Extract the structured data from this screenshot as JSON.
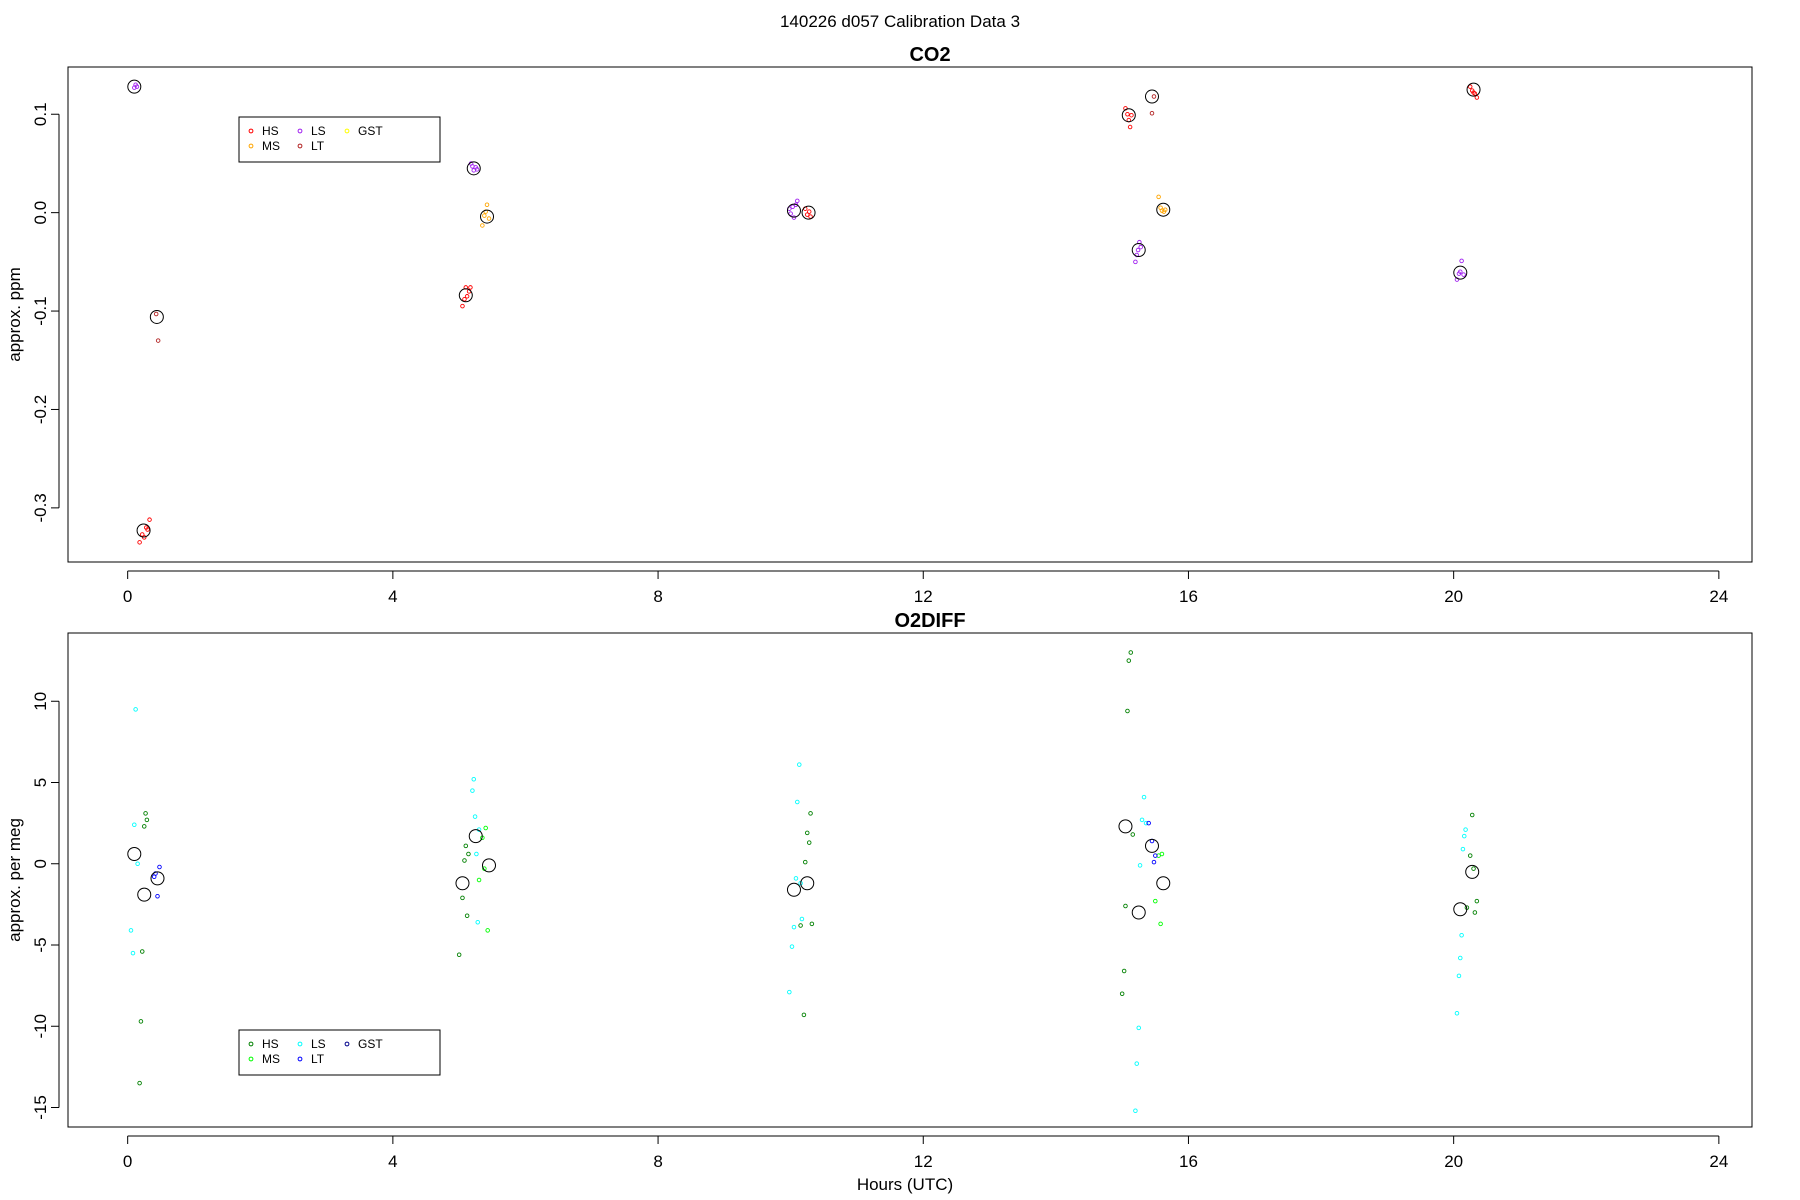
{
  "figure": {
    "title": "140226   d057   Calibration Data 3",
    "xlabel": "Hours (UTC)"
  },
  "chart_data": [
    {
      "type": "scatter",
      "title": "CO2",
      "xlabel": "",
      "ylabel": "approx. ppm",
      "xlim": [
        -0.9,
        24.5
      ],
      "ylim": [
        -0.355,
        0.148
      ],
      "xticks": [
        0,
        4,
        8,
        12,
        16,
        20,
        24
      ],
      "yticks": [
        -0.3,
        -0.2,
        -0.1,
        0.0,
        0.1
      ],
      "ytick_labels": [
        "-0.3",
        "-0.2",
        "-0.1",
        "0.0",
        "0.1"
      ],
      "legend": {
        "placement": "top-left",
        "entries": [
          {
            "name": "HS",
            "color": "#ff0000"
          },
          {
            "name": "MS",
            "color": "#ffa500"
          },
          {
            "name": "LS",
            "color": "#a020f0"
          },
          {
            "name": "LT",
            "color": "#b22222"
          },
          {
            "name": "GST",
            "color": "#ffff00"
          }
        ]
      },
      "series": [
        {
          "name": "HS",
          "color": "#ff0000",
          "points": [
            [
              0.18,
              -0.335
            ],
            [
              0.22,
              -0.327
            ],
            [
              0.25,
              -0.33
            ],
            [
              0.28,
              -0.32
            ],
            [
              0.3,
              -0.322
            ],
            [
              0.33,
              -0.312
            ],
            [
              5.05,
              -0.095
            ],
            [
              5.08,
              -0.088
            ],
            [
              5.1,
              -0.076
            ],
            [
              5.12,
              -0.085
            ],
            [
              5.15,
              -0.08
            ],
            [
              5.17,
              -0.076
            ],
            [
              10.22,
              0.004
            ],
            [
              10.25,
              -0.002
            ],
            [
              10.28,
              0.001
            ],
            [
              10.3,
              -0.004
            ],
            [
              15.05,
              0.106
            ],
            [
              15.08,
              0.1
            ],
            [
              15.1,
              0.094
            ],
            [
              15.12,
              0.087
            ],
            [
              15.14,
              0.099
            ],
            [
              20.25,
              0.128
            ],
            [
              20.28,
              0.124
            ],
            [
              20.3,
              0.122
            ],
            [
              20.32,
              0.121
            ],
            [
              20.35,
              0.117
            ]
          ]
        },
        {
          "name": "MS",
          "color": "#ffa500",
          "points": [
            [
              5.35,
              -0.013
            ],
            [
              5.38,
              -0.003
            ],
            [
              5.4,
              0.001
            ],
            [
              5.42,
              0.008
            ],
            [
              5.45,
              -0.006
            ],
            [
              15.55,
              0.016
            ],
            [
              15.58,
              0.005
            ],
            [
              15.6,
              0.002
            ],
            [
              15.63,
              0.001
            ],
            [
              15.65,
              0.003
            ]
          ]
        },
        {
          "name": "LS",
          "color": "#a020f0",
          "points": [
            [
              0.1,
              0.127
            ],
            [
              0.12,
              0.13
            ],
            [
              0.14,
              0.128
            ],
            [
              5.18,
              0.05
            ],
            [
              5.2,
              0.047
            ],
            [
              5.22,
              0.043
            ],
            [
              5.25,
              0.046
            ],
            [
              5.27,
              0.044
            ],
            [
              9.98,
              0.004
            ],
            [
              10.0,
              -0.001
            ],
            [
              10.03,
              0.006
            ],
            [
              10.05,
              -0.005
            ],
            [
              10.08,
              0.008
            ],
            [
              10.1,
              0.012
            ],
            [
              15.2,
              -0.05
            ],
            [
              15.22,
              -0.043
            ],
            [
              15.24,
              -0.038
            ],
            [
              15.26,
              -0.03
            ],
            [
              15.28,
              -0.035
            ],
            [
              20.05,
              -0.068
            ],
            [
              20.08,
              -0.062
            ],
            [
              20.1,
              -0.06
            ],
            [
              20.12,
              -0.049
            ],
            [
              20.15,
              -0.063
            ]
          ]
        },
        {
          "name": "LT",
          "color": "#b22222",
          "points": [
            [
              0.43,
              -0.103
            ],
            [
              0.46,
              -0.13
            ],
            [
              15.45,
              0.101
            ],
            [
              15.48,
              0.118
            ]
          ]
        },
        {
          "name": "GST",
          "color": "#ffff00",
          "points": []
        },
        {
          "name": "",
          "color": "#000000",
          "marker": "large",
          "points": [
            [
              0.1,
              0.128
            ],
            [
              0.24,
              -0.323
            ],
            [
              0.44,
              -0.106
            ],
            [
              5.1,
              -0.084
            ],
            [
              5.22,
              0.045
            ],
            [
              5.42,
              -0.004
            ],
            [
              10.05,
              0.002
            ],
            [
              10.27,
              0.0
            ],
            [
              15.1,
              0.099
            ],
            [
              15.25,
              -0.038
            ],
            [
              15.45,
              0.118
            ],
            [
              15.62,
              0.003
            ],
            [
              20.1,
              -0.061
            ],
            [
              20.3,
              0.125
            ]
          ]
        }
      ]
    },
    {
      "type": "scatter",
      "title": "O2DIFF",
      "xlabel": "Hours (UTC)",
      "ylabel": "approx. per meg",
      "xlim": [
        -0.9,
        24.5
      ],
      "ylim": [
        -16.2,
        14.2
      ],
      "xticks": [
        0,
        4,
        8,
        12,
        16,
        20,
        24
      ],
      "yticks": [
        -15,
        -10,
        -5,
        0,
        5,
        10
      ],
      "ytick_labels": [
        "-15",
        "-10",
        "-5",
        "0",
        "5",
        "10"
      ],
      "legend": {
        "placement": "bottom-left",
        "entries": [
          {
            "name": "HS",
            "color": "#008000"
          },
          {
            "name": "MS",
            "color": "#00ff00"
          },
          {
            "name": "LS",
            "color": "#00ffff"
          },
          {
            "name": "LT",
            "color": "#0000ff"
          },
          {
            "name": "GST",
            "color": "#00008b"
          }
        ]
      },
      "series": [
        {
          "name": "HS",
          "color": "#008000",
          "points": [
            [
              0.18,
              -13.5
            ],
            [
              0.2,
              -9.7
            ],
            [
              0.22,
              -5.4
            ],
            [
              0.25,
              2.3
            ],
            [
              0.27,
              3.1
            ],
            [
              0.29,
              2.7
            ],
            [
              5.0,
              -5.6
            ],
            [
              5.05,
              -2.1
            ],
            [
              5.08,
              0.2
            ],
            [
              5.1,
              1.1
            ],
            [
              5.12,
              -3.2
            ],
            [
              5.14,
              0.6
            ],
            [
              10.15,
              -3.8
            ],
            [
              10.2,
              -9.3
            ],
            [
              10.22,
              0.1
            ],
            [
              10.25,
              1.9
            ],
            [
              10.28,
              1.3
            ],
            [
              10.3,
              3.1
            ],
            [
              10.32,
              -3.7
            ],
            [
              15.0,
              -8.0
            ],
            [
              15.03,
              -6.6
            ],
            [
              15.05,
              -2.6
            ],
            [
              15.08,
              9.4
            ],
            [
              15.1,
              12.5
            ],
            [
              15.13,
              13.0
            ],
            [
              15.16,
              1.8
            ],
            [
              20.2,
              -2.7
            ],
            [
              20.25,
              0.5
            ],
            [
              20.28,
              3.0
            ],
            [
              20.3,
              -0.3
            ],
            [
              20.32,
              -3.0
            ],
            [
              20.35,
              -2.3
            ]
          ]
        },
        {
          "name": "MS",
          "color": "#00ff00",
          "points": [
            [
              5.3,
              -1.0
            ],
            [
              5.35,
              1.6
            ],
            [
              5.38,
              -0.3
            ],
            [
              5.4,
              2.2
            ],
            [
              5.43,
              -4.1
            ],
            [
              15.5,
              -2.3
            ],
            [
              15.55,
              0.5
            ],
            [
              15.58,
              -3.7
            ],
            [
              15.6,
              0.6
            ]
          ]
        },
        {
          "name": "LS",
          "color": "#00ffff",
          "points": [
            [
              0.05,
              -4.1
            ],
            [
              0.08,
              -5.5
            ],
            [
              0.1,
              2.4
            ],
            [
              0.12,
              9.5
            ],
            [
              0.15,
              0.0
            ],
            [
              5.2,
              4.5
            ],
            [
              5.22,
              5.2
            ],
            [
              5.24,
              2.9
            ],
            [
              5.26,
              0.6
            ],
            [
              5.28,
              -3.6
            ],
            [
              5.3,
              2.1
            ],
            [
              9.98,
              -7.9
            ],
            [
              10.02,
              -5.1
            ],
            [
              10.05,
              -3.9
            ],
            [
              10.08,
              -0.9
            ],
            [
              10.1,
              3.8
            ],
            [
              10.13,
              6.1
            ],
            [
              10.15,
              -1.2
            ],
            [
              10.17,
              -3.4
            ],
            [
              15.2,
              -15.2
            ],
            [
              15.22,
              -12.3
            ],
            [
              15.25,
              -10.1
            ],
            [
              15.27,
              -0.1
            ],
            [
              15.3,
              2.7
            ],
            [
              15.33,
              4.1
            ],
            [
              15.36,
              2.5
            ],
            [
              20.05,
              -9.2
            ],
            [
              20.08,
              -6.9
            ],
            [
              20.1,
              -5.8
            ],
            [
              20.12,
              -4.4
            ],
            [
              20.14,
              0.9
            ],
            [
              20.16,
              1.7
            ],
            [
              20.18,
              2.1
            ]
          ]
        },
        {
          "name": "LT",
          "color": "#0000ff",
          "points": [
            [
              0.4,
              -0.8
            ],
            [
              0.42,
              -0.6
            ],
            [
              0.45,
              -2.0
            ],
            [
              0.48,
              -0.2
            ],
            [
              15.45,
              1.4
            ],
            [
              15.48,
              0.1
            ],
            [
              15.5,
              0.5
            ],
            [
              15.4,
              2.5
            ]
          ]
        },
        {
          "name": "GST",
          "color": "#00008b",
          "points": []
        },
        {
          "name": "",
          "color": "#000000",
          "marker": "large",
          "points": [
            [
              0.1,
              0.6
            ],
            [
              0.25,
              -1.9
            ],
            [
              0.45,
              -0.9
            ],
            [
              5.05,
              -1.2
            ],
            [
              5.25,
              1.7
            ],
            [
              5.45,
              -0.1
            ],
            [
              10.05,
              -1.6
            ],
            [
              10.25,
              -1.2
            ],
            [
              15.05,
              2.3
            ],
            [
              15.25,
              -3.0
            ],
            [
              15.45,
              1.1
            ],
            [
              15.62,
              -1.2
            ],
            [
              20.1,
              -2.8
            ],
            [
              20.28,
              -0.5
            ]
          ]
        }
      ]
    }
  ]
}
